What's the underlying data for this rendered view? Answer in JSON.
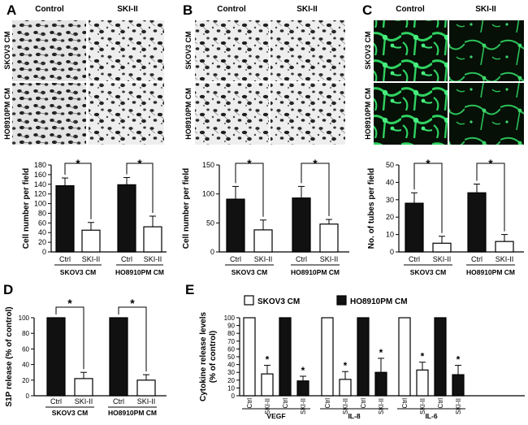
{
  "figure": {
    "panel_letters": [
      "A",
      "B",
      "C",
      "D",
      "E"
    ],
    "image_column_headers": [
      "Control",
      "SKI-II"
    ],
    "image_row_labels": [
      "SKOV3 CM",
      "HO8910PM CM"
    ],
    "significance_marker": "*"
  },
  "colors": {
    "bar_filled": "#111111",
    "bar_open": "#ffffff",
    "axis": "#000000",
    "microscopy_bg": "#eeeeee",
    "cell_stain": "#2b2b2b",
    "fluorescence_bg": "#061006",
    "fluorescence": "#2fd160"
  },
  "chart_data": [
    {
      "panel": "A",
      "type": "bar",
      "ylabel": "Cell number per field",
      "ylim": [
        0,
        180
      ],
      "yticks": [
        0,
        20,
        40,
        60,
        80,
        100,
        120,
        140,
        160,
        180
      ],
      "groups": [
        {
          "label": "SKOV3 CM",
          "categories": [
            "Ctrl",
            "SKI-II"
          ],
          "values": [
            137,
            45
          ],
          "errors": [
            16,
            16
          ],
          "fills": [
            "filled",
            "open"
          ]
        },
        {
          "label": "HO8910PM CM",
          "categories": [
            "Ctrl",
            "SKI-II"
          ],
          "values": [
            139,
            52
          ],
          "errors": [
            15,
            22
          ],
          "fills": [
            "filled",
            "open"
          ]
        }
      ],
      "significance": [
        "*",
        "*"
      ]
    },
    {
      "panel": "B",
      "type": "bar",
      "ylabel": "Cell number per field",
      "ylim": [
        0,
        150
      ],
      "yticks": [
        0,
        50,
        100,
        150
      ],
      "groups": [
        {
          "label": "SKOV3 CM",
          "categories": [
            "Ctrl",
            "SKI-II"
          ],
          "values": [
            91,
            38
          ],
          "errors": [
            22,
            17
          ],
          "fills": [
            "filled",
            "open"
          ]
        },
        {
          "label": "HO8910PM CM",
          "categories": [
            "Ctrl",
            "SKI-II"
          ],
          "values": [
            93,
            48
          ],
          "errors": [
            20,
            8
          ],
          "fills": [
            "filled",
            "open"
          ]
        }
      ],
      "significance": [
        "*",
        "*"
      ]
    },
    {
      "panel": "C",
      "type": "bar",
      "ylabel": "No. of tubes per field",
      "ylim": [
        0,
        50
      ],
      "yticks": [
        0,
        10,
        20,
        30,
        40,
        50
      ],
      "groups": [
        {
          "label": "SKOV3 CM",
          "categories": [
            "Ctrl",
            "SKI-II"
          ],
          "values": [
            28,
            5
          ],
          "errors": [
            6,
            4
          ],
          "fills": [
            "filled",
            "open"
          ]
        },
        {
          "label": "HO8910PM CM",
          "categories": [
            "Ctrl",
            "SKI-II"
          ],
          "values": [
            34,
            6
          ],
          "errors": [
            5,
            4
          ],
          "fills": [
            "filled",
            "open"
          ]
        }
      ],
      "significance": [
        "*",
        "*"
      ]
    },
    {
      "panel": "D",
      "type": "bar",
      "ylabel": "S1P release (% of control)",
      "ylim": [
        0,
        100
      ],
      "yticks": [
        0,
        20,
        40,
        60,
        80,
        100
      ],
      "groups": [
        {
          "label": "SKOV3 CM",
          "categories": [
            "Ctrl",
            "SKI-II"
          ],
          "values": [
            100,
            22
          ],
          "errors": [
            0,
            8
          ],
          "fills": [
            "filled",
            "open"
          ]
        },
        {
          "label": "HO8910PM CM",
          "categories": [
            "Ctrl",
            "SKI-II"
          ],
          "values": [
            100,
            20
          ],
          "errors": [
            0,
            7
          ],
          "fills": [
            "filled",
            "open"
          ]
        }
      ],
      "significance": [
        "*",
        "*"
      ]
    },
    {
      "panel": "E",
      "type": "bar",
      "ylabel": [
        "Cytokine release levels",
        "(% of control)"
      ],
      "ylim": [
        0,
        100
      ],
      "yticks": [
        0,
        10,
        20,
        30,
        40,
        50,
        60,
        70,
        80,
        90,
        100
      ],
      "legend": [
        {
          "name": "SKOV3 CM",
          "fill": "open"
        },
        {
          "name": "HO8910PM CM",
          "fill": "filled"
        }
      ],
      "legend_position": "top",
      "groups": [
        {
          "label": "VEGF",
          "categories": [
            "Ctrl",
            "SKI-II",
            "Ctrl",
            "SKI-II"
          ],
          "values": [
            100,
            28,
            100,
            19
          ],
          "errors": [
            0,
            11,
            0,
            6
          ],
          "fills": [
            "open",
            "open",
            "filled",
            "filled"
          ],
          "stars": [
            false,
            true,
            false,
            true
          ]
        },
        {
          "label": "IL-8",
          "categories": [
            "Ctrl",
            "SKI-II",
            "Ctrl",
            "SKI-II"
          ],
          "values": [
            100,
            21,
            100,
            30
          ],
          "errors": [
            0,
            10,
            0,
            18
          ],
          "fills": [
            "open",
            "open",
            "filled",
            "filled"
          ],
          "stars": [
            false,
            true,
            false,
            true
          ]
        },
        {
          "label": "IL-6",
          "categories": [
            "Ctrl",
            "SKI-II",
            "Ctrl",
            "SKI-II"
          ],
          "values": [
            100,
            33,
            100,
            27
          ],
          "errors": [
            0,
            10,
            0,
            12
          ],
          "fills": [
            "open",
            "open",
            "filled",
            "filled"
          ],
          "stars": [
            false,
            true,
            false,
            true
          ]
        }
      ]
    }
  ]
}
